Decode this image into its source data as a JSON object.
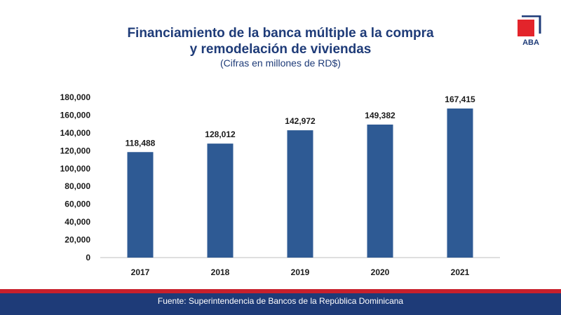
{
  "header": {
    "title_line1": "Financiamiento de la banca múltiple a la compra",
    "title_line2": "y remodelación de viviendas",
    "subtitle": "(Cifras en millones de RD$)"
  },
  "logo": {
    "text": "ABA"
  },
  "footer": {
    "source": "Fuente: Superintendencia de Bancos de la República Dominicana"
  },
  "colors": {
    "bar": "#2e5a94",
    "title": "#1e3b78",
    "footer_bg": "#1e3b78",
    "footer_stripe": "#c8202c",
    "logo_red": "#e3242b"
  },
  "chart_data": {
    "type": "bar",
    "title": "Financiamiento de la banca múltiple a la compra y remodelación de viviendas",
    "subtitle": "(Cifras en millones de RD$)",
    "xlabel": "",
    "ylabel": "",
    "categories": [
      "2017",
      "2018",
      "2019",
      "2020",
      "2021"
    ],
    "values": [
      118488,
      128012,
      142972,
      149382,
      167415
    ],
    "value_labels": [
      "118,488",
      "128,012",
      "142,972",
      "149,382",
      "167,415"
    ],
    "ylim": [
      0,
      180000
    ],
    "yticks": [
      0,
      20000,
      40000,
      60000,
      80000,
      100000,
      120000,
      140000,
      160000,
      180000
    ],
    "ytick_labels": [
      "0",
      "20,000",
      "40,000",
      "60,000",
      "80,000",
      "100,000",
      "120,000",
      "140,000",
      "160,000",
      "180,000"
    ],
    "grid": false,
    "legend": "none"
  }
}
